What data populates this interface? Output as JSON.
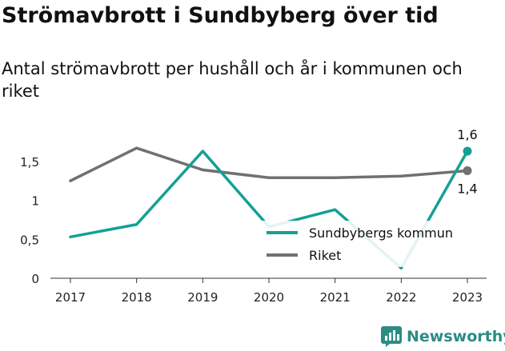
{
  "header": {
    "title": "Strömavbrott i Sundbyberg över tid",
    "subtitle": "Antal strömavbrott per hushåll och år i kommunen och riket"
  },
  "brand": {
    "name": "Newsworthy",
    "icon": "newsworthy-logo-icon"
  },
  "chart_data": {
    "type": "line",
    "x": [
      "2017",
      "2018",
      "2019",
      "2020",
      "2021",
      "2022",
      "2023"
    ],
    "ylim": [
      0,
      1.75
    ],
    "yticks": [
      {
        "value": 0,
        "label": "0"
      },
      {
        "value": 0.5,
        "label": "0,5"
      },
      {
        "value": 1,
        "label": "1"
      },
      {
        "value": 1.5,
        "label": "1,5"
      }
    ],
    "series": [
      {
        "name": "Sundbybergs kommun",
        "color": "#14a096",
        "values": [
          0.53,
          0.69,
          1.63,
          0.66,
          0.88,
          0.13,
          1.63
        ],
        "end_label": "1,6"
      },
      {
        "name": "Riket",
        "color": "#707070",
        "values": [
          1.25,
          1.67,
          1.39,
          1.29,
          1.29,
          1.31,
          1.38
        ],
        "end_label": "1,4"
      }
    ],
    "grid": false,
    "legend": "inside-bottom-right"
  }
}
